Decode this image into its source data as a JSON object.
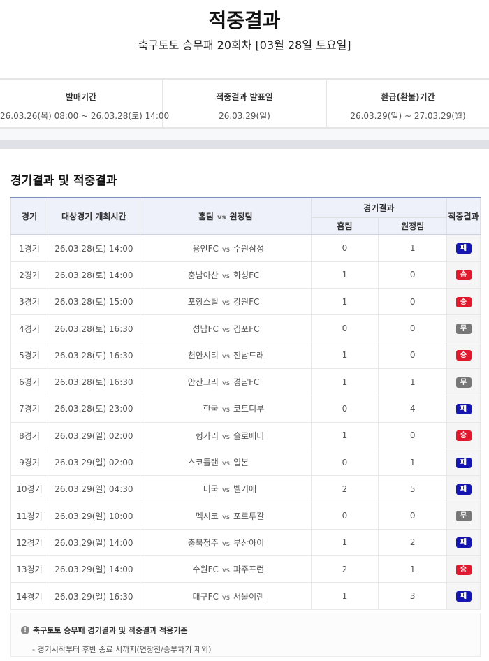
{
  "page": {
    "title": "적중결과",
    "subtitle": "축구토토 승무패 20회차 [03월 28일 토요일]"
  },
  "info": [
    {
      "label": "발매기간",
      "value": "26.03.26(목) 08:00 ~ 26.03.28(토) 14:00"
    },
    {
      "label": "적중결과 발표일",
      "value": "26.03.29(일)"
    },
    {
      "label": "환급(환불)기간",
      "value": "26.03.29(일) ~ 27.03.29(월)"
    }
  ],
  "section_title": "경기결과 및 적중결과",
  "table": {
    "headers": {
      "game": "경기",
      "time": "대상경기 개최시간",
      "teams": "홈팀 vs 원정팀",
      "result": "경기결과",
      "home": "홈팀",
      "away": "원정팀",
      "outcome": "적중결과",
      "vs": "vs"
    },
    "rows": [
      {
        "game": "1경기",
        "time": "26.03.28(토) 14:00",
        "home": "용인FC",
        "away": "수원삼성",
        "hs": "0",
        "as": "1",
        "outcome": "패"
      },
      {
        "game": "2경기",
        "time": "26.03.28(토) 14:00",
        "home": "충남아산",
        "away": "화성FC",
        "hs": "1",
        "as": "0",
        "outcome": "승"
      },
      {
        "game": "3경기",
        "time": "26.03.28(토) 15:00",
        "home": "포항스틸",
        "away": "강원FC",
        "hs": "1",
        "as": "0",
        "outcome": "승"
      },
      {
        "game": "4경기",
        "time": "26.03.28(토) 16:30",
        "home": "성남FC",
        "away": "김포FC",
        "hs": "0",
        "as": "0",
        "outcome": "무"
      },
      {
        "game": "5경기",
        "time": "26.03.28(토) 16:30",
        "home": "천안시티",
        "away": "전남드래",
        "hs": "1",
        "as": "0",
        "outcome": "승"
      },
      {
        "game": "6경기",
        "time": "26.03.28(토) 16:30",
        "home": "안산그리",
        "away": "경남FC",
        "hs": "1",
        "as": "1",
        "outcome": "무"
      },
      {
        "game": "7경기",
        "time": "26.03.28(토) 23:00",
        "home": "한국",
        "away": "코트디부",
        "hs": "0",
        "as": "4",
        "outcome": "패"
      },
      {
        "game": "8경기",
        "time": "26.03.29(일) 02:00",
        "home": "헝가리",
        "away": "슬로베니",
        "hs": "1",
        "as": "0",
        "outcome": "승"
      },
      {
        "game": "9경기",
        "time": "26.03.29(일) 02:00",
        "home": "스코틀랜",
        "away": "일본",
        "hs": "0",
        "as": "1",
        "outcome": "패"
      },
      {
        "game": "10경기",
        "time": "26.03.29(일) 04:30",
        "home": "미국",
        "away": "벨기에",
        "hs": "2",
        "as": "5",
        "outcome": "패"
      },
      {
        "game": "11경기",
        "time": "26.03.29(일) 10:00",
        "home": "멕시코",
        "away": "포르투갈",
        "hs": "0",
        "as": "0",
        "outcome": "무"
      },
      {
        "game": "12경기",
        "time": "26.03.29(일) 14:00",
        "home": "충북청주",
        "away": "부산아이",
        "hs": "1",
        "as": "2",
        "outcome": "패"
      },
      {
        "game": "13경기",
        "time": "26.03.29(일) 14:00",
        "home": "수원FC",
        "away": "파주프런",
        "hs": "2",
        "as": "1",
        "outcome": "승"
      },
      {
        "game": "14경기",
        "time": "26.03.29(일) 16:30",
        "home": "대구FC",
        "away": "서울이랜",
        "hs": "1",
        "as": "3",
        "outcome": "패"
      }
    ]
  },
  "outcome_colors": {
    "승": "#e01a2e",
    "무": "#777777",
    "패": "#1515b0"
  },
  "note": {
    "icon": "exclamation-icon",
    "icon_glyph": "!",
    "heading": "축구토토 승무패 경기결과 및 적중결과 적용기준",
    "body": "- 경기시작부터 후반 종료 시까지(연장전/승부차기 제외)"
  }
}
